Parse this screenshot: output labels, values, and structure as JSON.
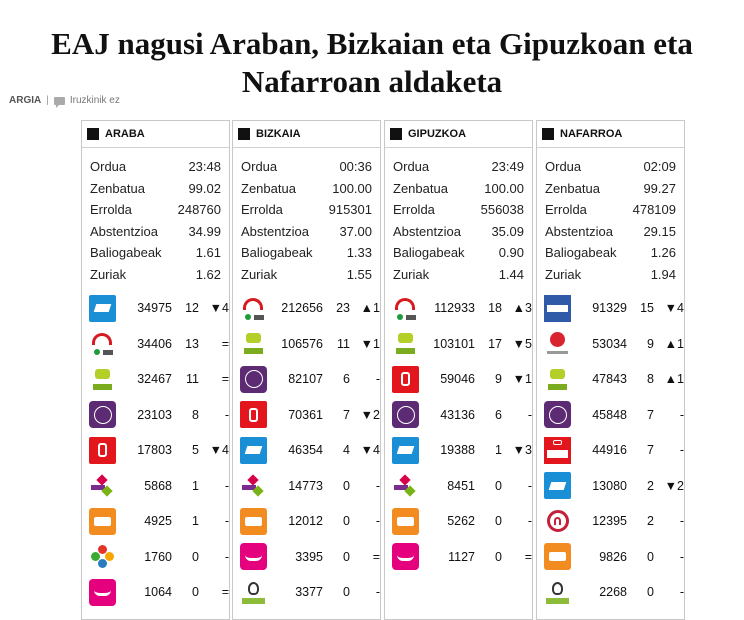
{
  "article": {
    "title": "EAJ nagusi Araban, Bizkaian eta Gipuzkoan eta Nafarroan aldaketa",
    "author": "ARGIA",
    "separator": "|",
    "comments": "Iruzkinik ez"
  },
  "colors": {
    "border": "#c8c8c8",
    "text": "#222222"
  },
  "regions": [
    {
      "name": "ARABA",
      "stats": [
        {
          "label": "Ordua",
          "value": "23:48"
        },
        {
          "label": "Zenbatua",
          "value": "99.02"
        },
        {
          "label": "Errolda",
          "value": "248760"
        },
        {
          "label": "Abstentzioa",
          "value": "34.99"
        },
        {
          "label": "Baliogabeak",
          "value": "1.61"
        },
        {
          "label": "Zuriak",
          "value": "1.62"
        }
      ],
      "results": [
        {
          "logo": "pp-logo",
          "votes": "34975",
          "seats": "12",
          "change": "▼4"
        },
        {
          "logo": "eaj-pnv-logo",
          "votes": "34406",
          "seats": "13",
          "change": "="
        },
        {
          "logo": "eh-bildu-logo",
          "votes": "32467",
          "seats": "11",
          "change": "="
        },
        {
          "logo": "podemos-logo",
          "votes": "23103",
          "seats": "8",
          "change": "-"
        },
        {
          "logo": "pse-logo",
          "votes": "17803",
          "seats": "5",
          "change": "▼4"
        },
        {
          "logo": "ehb-logo",
          "votes": "5868",
          "seats": "1",
          "change": "-"
        },
        {
          "logo": "cs-logo",
          "votes": "4925",
          "seats": "1",
          "change": "-"
        },
        {
          "logo": "circle-logo",
          "votes": "1760",
          "seats": "0",
          "change": "-"
        },
        {
          "logo": "upyd-logo",
          "votes": "1064",
          "seats": "0",
          "change": "="
        }
      ]
    },
    {
      "name": "BIZKAIA",
      "stats": [
        {
          "label": "Ordua",
          "value": "00:36"
        },
        {
          "label": "Zenbatua",
          "value": "100.00"
        },
        {
          "label": "Errolda",
          "value": "915301"
        },
        {
          "label": "Abstentzioa",
          "value": "37.00"
        },
        {
          "label": "Baliogabeak",
          "value": "1.33"
        },
        {
          "label": "Zuriak",
          "value": "1.55"
        }
      ],
      "results": [
        {
          "logo": "eaj-pnv-logo",
          "votes": "212656",
          "seats": "23",
          "change": "▲1"
        },
        {
          "logo": "eh-bildu-logo",
          "votes": "106576",
          "seats": "11",
          "change": "▼1"
        },
        {
          "logo": "podemos-logo",
          "votes": "82107",
          "seats": "6",
          "change": "-"
        },
        {
          "logo": "pse-logo",
          "votes": "70361",
          "seats": "7",
          "change": "▼2"
        },
        {
          "logo": "pp-logo",
          "votes": "46354",
          "seats": "4",
          "change": "▼4"
        },
        {
          "logo": "ehb-logo",
          "votes": "14773",
          "seats": "0",
          "change": "-"
        },
        {
          "logo": "cs-logo",
          "votes": "12012",
          "seats": "0",
          "change": "-"
        },
        {
          "logo": "upyd-logo",
          "votes": "3395",
          "seats": "0",
          "change": "="
        },
        {
          "logo": "pacma-logo",
          "votes": "3377",
          "seats": "0",
          "change": "-"
        }
      ]
    },
    {
      "name": "GIPUZKOA",
      "stats": [
        {
          "label": "Ordua",
          "value": "23:49"
        },
        {
          "label": "Zenbatua",
          "value": "100.00"
        },
        {
          "label": "Errolda",
          "value": "556038"
        },
        {
          "label": "Abstentzioa",
          "value": "35.09"
        },
        {
          "label": "Baliogabeak",
          "value": "0.90"
        },
        {
          "label": "Zuriak",
          "value": "1.44"
        }
      ],
      "results": [
        {
          "logo": "eaj-pnv-logo",
          "votes": "112933",
          "seats": "18",
          "change": "▲3"
        },
        {
          "logo": "eh-bildu-logo",
          "votes": "103101",
          "seats": "17",
          "change": "▼5"
        },
        {
          "logo": "pse-logo",
          "votes": "59046",
          "seats": "9",
          "change": "▼1"
        },
        {
          "logo": "podemos-logo",
          "votes": "43136",
          "seats": "6",
          "change": "-"
        },
        {
          "logo": "pp-logo",
          "votes": "19388",
          "seats": "1",
          "change": "▼3"
        },
        {
          "logo": "ehb-logo",
          "votes": "8451",
          "seats": "0",
          "change": "-"
        },
        {
          "logo": "cs-logo",
          "votes": "5262",
          "seats": "0",
          "change": "-"
        },
        {
          "logo": "upyd-logo",
          "votes": "1127",
          "seats": "0",
          "change": "="
        }
      ]
    },
    {
      "name": "NAFARROA",
      "stats": [
        {
          "label": "Ordua",
          "value": "02:09"
        },
        {
          "label": "Zenbatua",
          "value": "99.27"
        },
        {
          "label": "Errolda",
          "value": "478109"
        },
        {
          "label": "Abstentzioa",
          "value": "29.15"
        },
        {
          "label": "Baliogabeak",
          "value": "1.26"
        },
        {
          "label": "Zuriak",
          "value": "1.94"
        }
      ],
      "results": [
        {
          "logo": "upn-logo",
          "votes": "91329",
          "seats": "15",
          "change": "▼4"
        },
        {
          "logo": "geroa-bai-logo",
          "votes": "53034",
          "seats": "9",
          "change": "▲1"
        },
        {
          "logo": "eh-bildu-logo",
          "votes": "47843",
          "seats": "8",
          "change": "▲1"
        },
        {
          "logo": "podemos-logo",
          "votes": "45848",
          "seats": "7",
          "change": "-"
        },
        {
          "logo": "psoe-logo",
          "votes": "44916",
          "seats": "7",
          "change": "-"
        },
        {
          "logo": "pp-logo",
          "votes": "13080",
          "seats": "2",
          "change": "▼2"
        },
        {
          "logo": "n-logo",
          "votes": "12395",
          "seats": "2",
          "change": "-"
        },
        {
          "logo": "cs-logo",
          "votes": "9826",
          "seats": "0",
          "change": "-"
        },
        {
          "logo": "pacma-logo",
          "votes": "2268",
          "seats": "0",
          "change": "-"
        }
      ]
    }
  ]
}
